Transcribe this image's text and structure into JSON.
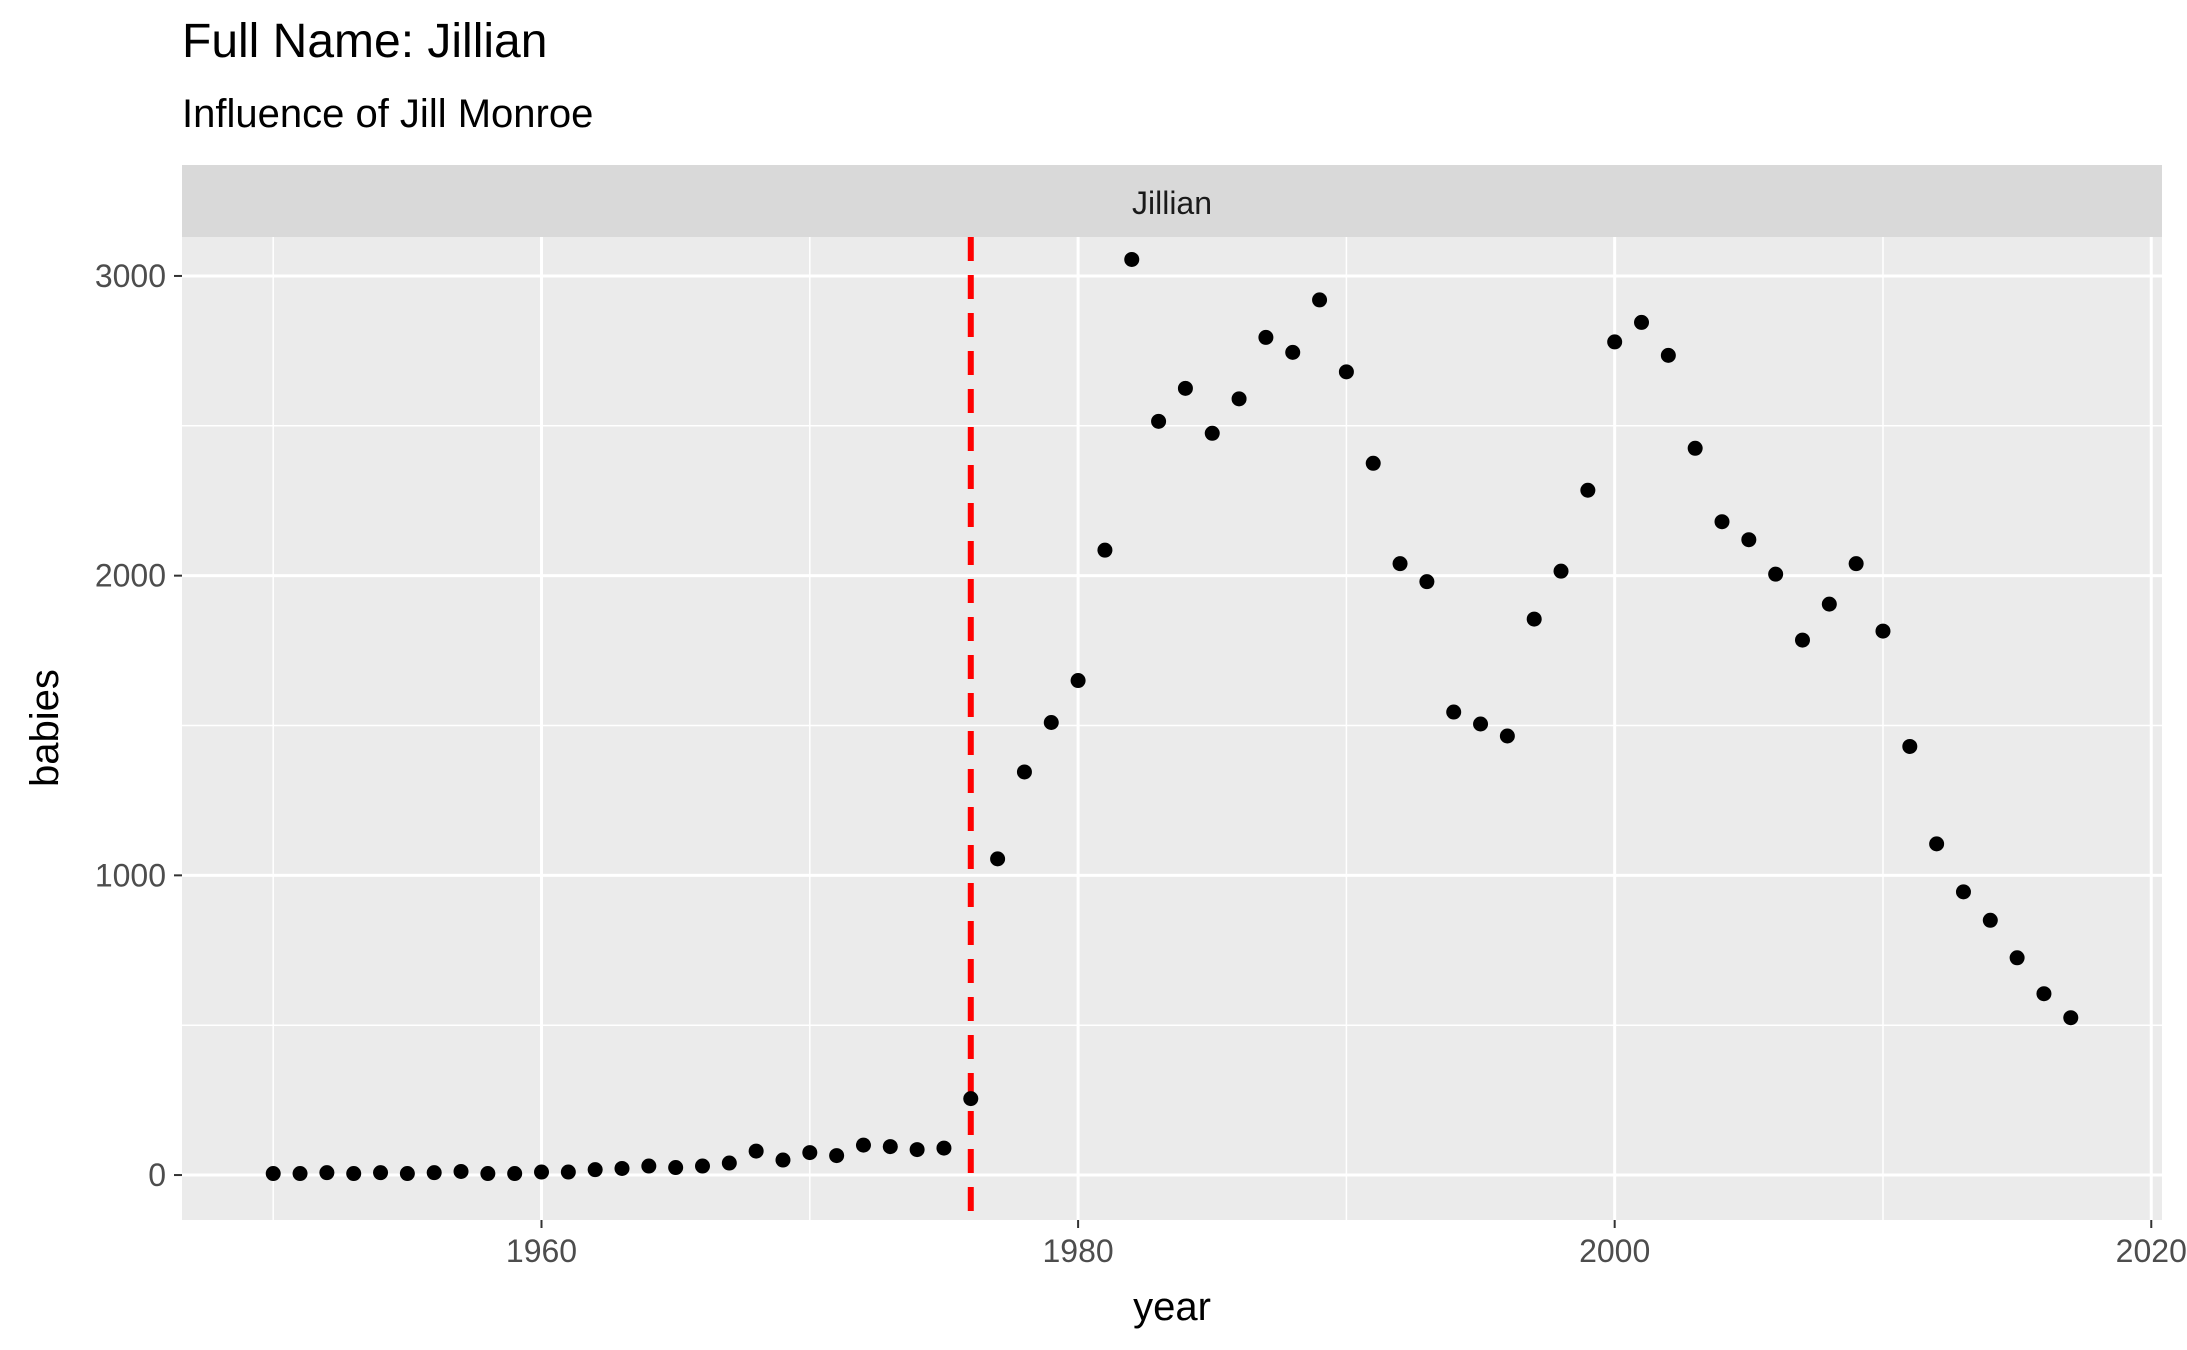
{
  "chart_data": {
    "type": "scatter",
    "title": "Full Name: Jillian",
    "subtitle": "Influence of Jill Monroe",
    "facet_label": "Jillian",
    "xlabel": "year",
    "ylabel": "babies",
    "xlim": [
      1946.6,
      2020.4
    ],
    "ylim": [
      -150,
      3130
    ],
    "x_ticks": [
      1960,
      1980,
      2000,
      2020
    ],
    "y_ticks": [
      0,
      1000,
      2000,
      3000
    ],
    "x_tick_labels": [
      "1960",
      "1980",
      "2000",
      "2020"
    ],
    "y_tick_labels": [
      "0",
      "1000",
      "2000",
      "3000"
    ],
    "grid": true,
    "vline": {
      "x": 1976,
      "color": "#ff0000",
      "style": "dashed"
    },
    "point_color": "#000000",
    "panel_color": "#ebebeb",
    "strip_color": "#d9d9d9",
    "x": [
      1950,
      1951,
      1952,
      1953,
      1954,
      1955,
      1956,
      1957,
      1958,
      1959,
      1960,
      1961,
      1962,
      1963,
      1964,
      1965,
      1966,
      1967,
      1968,
      1969,
      1970,
      1971,
      1972,
      1973,
      1974,
      1975,
      1976,
      1977,
      1978,
      1979,
      1980,
      1981,
      1982,
      1983,
      1984,
      1985,
      1986,
      1987,
      1988,
      1989,
      1990,
      1991,
      1992,
      1993,
      1994,
      1995,
      1996,
      1997,
      1998,
      1999,
      2000,
      2001,
      2002,
      2003,
      2004,
      2005,
      2006,
      2007,
      2008,
      2009,
      2010,
      2011,
      2012,
      2013,
      2014,
      2015,
      2016,
      2017
    ],
    "y": [
      5,
      5,
      8,
      5,
      8,
      5,
      8,
      12,
      5,
      5,
      10,
      10,
      18,
      22,
      30,
      25,
      30,
      40,
      80,
      50,
      75,
      65,
      100,
      95,
      85,
      90,
      255,
      1055,
      1345,
      1510,
      1650,
      2085,
      3055,
      2515,
      2625,
      2475,
      2590,
      2795,
      2745,
      2920,
      2680,
      2375,
      2040,
      1980,
      1545,
      1505,
      1465,
      1855,
      2015,
      2285,
      2780,
      2845,
      2735,
      2425,
      2180,
      2120,
      2005,
      1785,
      1905,
      2040,
      1815,
      1430,
      1105,
      945,
      850,
      725,
      605,
      525
    ]
  }
}
